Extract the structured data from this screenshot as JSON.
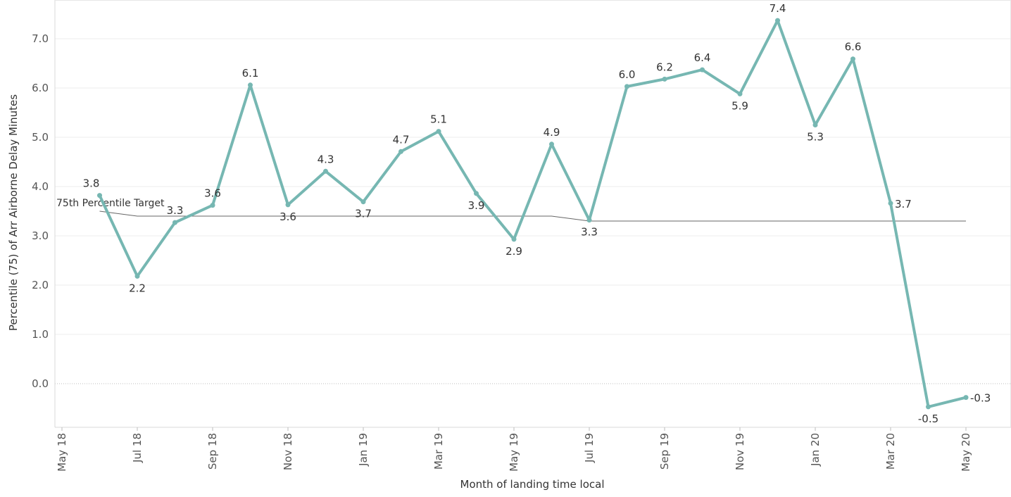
{
  "chart_data": {
    "type": "line",
    "xlabel": "Month of landing time local",
    "ylabel": "Percentile (75) of Arr Airborne Delay Minutes",
    "ylim": [
      -0.9,
      7.8
    ],
    "yticks": [
      0.0,
      1.0,
      2.0,
      3.0,
      4.0,
      5.0,
      6.0,
      7.0
    ],
    "ytick_labels": [
      "0.0",
      "1.0",
      "2.0",
      "3.0",
      "4.0",
      "5.0",
      "6.0",
      "7.0"
    ],
    "xticks": [
      "2018-05",
      "2018-07",
      "2018-09",
      "2018-11",
      "2019-01",
      "2019-03",
      "2019-05",
      "2019-07",
      "2019-09",
      "2019-11",
      "2020-01",
      "2020-03",
      "2020-05"
    ],
    "xtick_labels": [
      "May 18",
      "Jul 18",
      "Sep 18",
      "Nov 18",
      "Jan 19",
      "Mar 19",
      "May 19",
      "Jul 19",
      "Sep 19",
      "Nov 19",
      "Jan 20",
      "Mar 20",
      "May 20"
    ],
    "x": [
      "2018-06",
      "2018-07",
      "2018-08",
      "2018-09",
      "2018-10",
      "2018-11",
      "2018-12",
      "2019-01",
      "2019-02",
      "2019-03",
      "2019-04",
      "2019-05",
      "2019-06",
      "2019-07",
      "2019-08",
      "2019-09",
      "2019-10",
      "2019-11",
      "2019-12",
      "2020-01",
      "2020-02",
      "2020-03",
      "2020-04",
      "2020-05"
    ],
    "series": [
      {
        "values": [
          3.82,
          2.18,
          3.27,
          3.62,
          6.06,
          3.63,
          4.31,
          3.69,
          4.71,
          5.12,
          3.86,
          2.93,
          4.86,
          3.32,
          6.03,
          6.18,
          6.37,
          5.88,
          7.37,
          5.25,
          6.59,
          3.66,
          -0.47,
          -0.28
        ],
        "labels": [
          "3.8",
          "2.2",
          "3.3",
          "3.6",
          "6.1",
          "3.6",
          "4.3",
          "3.7",
          "4.7",
          "5.1",
          "3.9",
          "2.9",
          "4.9",
          "3.3",
          "6.0",
          "6.2",
          "6.4",
          "5.9",
          "7.4",
          "5.3",
          "6.6",
          "3.7",
          "-0.5",
          "-0.3"
        ],
        "color": "#76b7b2"
      }
    ],
    "reference_line": {
      "label": "75th Percentile Target",
      "color": "#666666",
      "x": [
        "2018-06",
        "2018-07",
        "2019-06",
        "2019-07",
        "2020-05"
      ],
      "values": [
        3.5,
        3.4,
        3.4,
        3.3,
        3.3
      ]
    },
    "grid": true,
    "zero_line": "dotted"
  }
}
